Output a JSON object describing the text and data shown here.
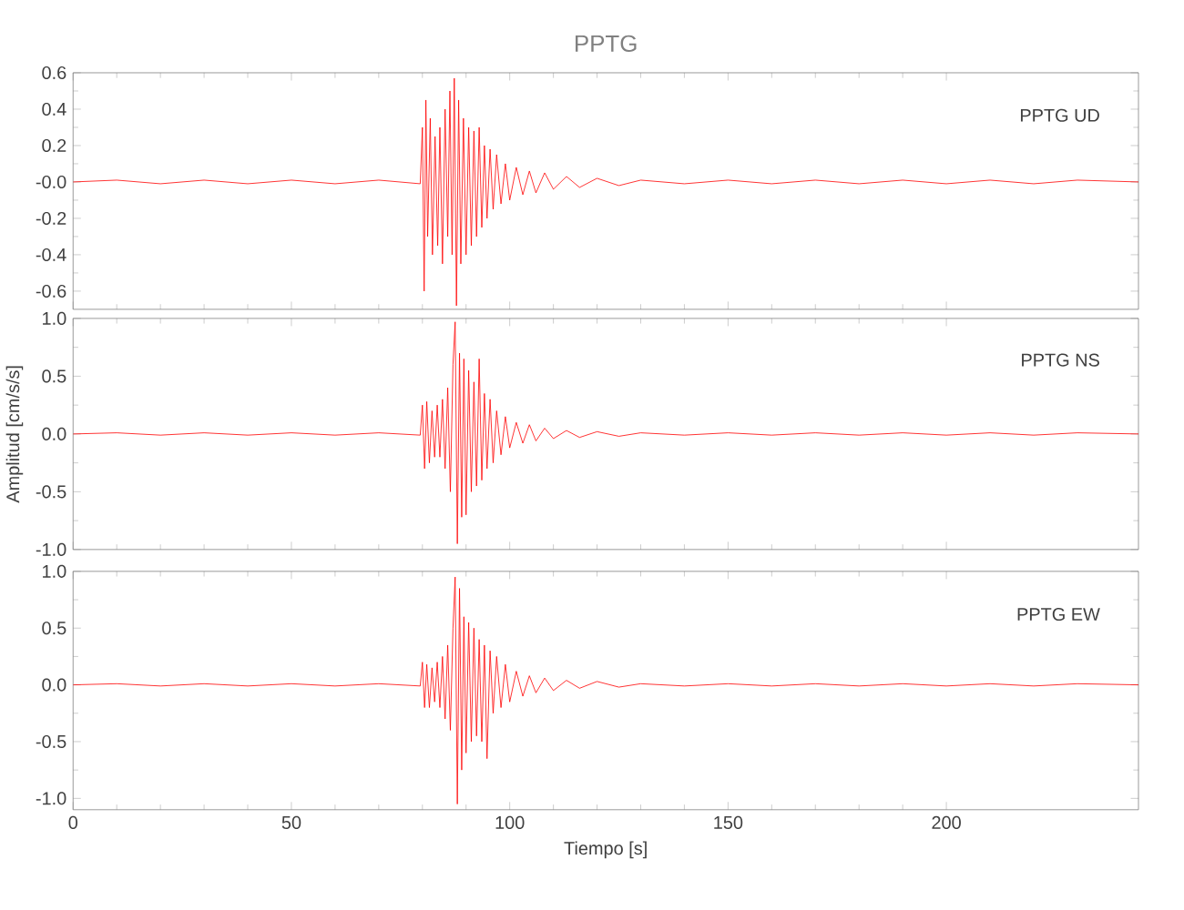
{
  "chart_data": [
    {
      "type": "line",
      "title": "PPTG",
      "annotations": [
        "PPTG   UD"
      ],
      "tick_labels": "y",
      "xlim": [
        0,
        244
      ],
      "xticks": [
        0,
        50,
        100,
        150,
        200
      ],
      "ylim": [
        -0.7,
        0.6
      ],
      "yticks": [
        {
          "value": -0.6,
          "label": "-0.6"
        },
        {
          "value": -0.4,
          "label": "-0.4"
        },
        {
          "value": -0.2,
          "label": "-0.2"
        },
        {
          "value": 0,
          "label": "-0.0"
        },
        0.2,
        0.4,
        0.6
      ],
      "series": [
        {
          "color": "#ff0000",
          "x": [
            0,
            10,
            20,
            30,
            40,
            50,
            60,
            70,
            79.5,
            80,
            80.4,
            80.8,
            81.2,
            81.8,
            82.3,
            82.9,
            83.5,
            84,
            84.6,
            85.2,
            85.8,
            86.3,
            86.8,
            87.3,
            87.8,
            88.3,
            88.8,
            89.4,
            90,
            90.6,
            91.2,
            91.8,
            92.4,
            93,
            93.6,
            94.2,
            94.8,
            95.5,
            96.2,
            97,
            98,
            99,
            100,
            101.5,
            103,
            104.5,
            106,
            108,
            110,
            113,
            116,
            120,
            125,
            130,
            140,
            150,
            160,
            170,
            180,
            190,
            200,
            210,
            220,
            230,
            244
          ],
          "values": [
            0,
            0.01,
            -0.01,
            0.01,
            -0.01,
            0.01,
            -0.01,
            0.01,
            -0.01,
            0.3,
            -0.6,
            0.45,
            -0.3,
            0.35,
            -0.4,
            0.25,
            -0.35,
            0.3,
            -0.45,
            0.4,
            -0.3,
            0.5,
            -0.4,
            0.57,
            -0.68,
            0.45,
            -0.45,
            0.35,
            -0.4,
            0.3,
            -0.35,
            0.28,
            -0.3,
            0.3,
            -0.25,
            0.2,
            -0.2,
            0.18,
            -0.15,
            0.15,
            -0.12,
            0.1,
            -0.1,
            0.08,
            -0.07,
            0.06,
            -0.06,
            0.05,
            -0.04,
            0.03,
            -0.03,
            0.02,
            -0.02,
            0.01,
            -0.01,
            0.01,
            -0.01,
            0.01,
            -0.01,
            0.01,
            -0.01,
            0.01,
            -0.01,
            0.01,
            0
          ]
        }
      ]
    },
    {
      "type": "line",
      "ylabel": "Amplitud [cm/s/s]",
      "annotations": [
        "PPTG   NS"
      ],
      "tick_labels": "y",
      "xlim": [
        0,
        244
      ],
      "xticks": [
        0,
        50,
        100,
        150,
        200
      ],
      "ylim": [
        -1.0,
        1.0
      ],
      "yticks": [
        {
          "value": -1.0,
          "label": "-1.0"
        },
        {
          "value": -0.5,
          "label": "-0.5"
        },
        {
          "value": 0,
          "label": "0.0"
        },
        {
          "value": 0.5,
          "label": "0.5"
        },
        {
          "value": 1.0,
          "label": "1.0"
        }
      ],
      "series": [
        {
          "color": "#ff0000",
          "x": [
            0,
            10,
            20,
            30,
            40,
            50,
            60,
            70,
            79.5,
            80,
            80.5,
            81,
            81.6,
            82.2,
            82.8,
            83.4,
            84,
            84.6,
            85.2,
            85.8,
            86.4,
            87,
            87.5,
            88,
            88.5,
            89,
            89.5,
            90,
            90.6,
            91.2,
            91.8,
            92.4,
            93,
            93.6,
            94.2,
            94.8,
            95.5,
            96.2,
            97,
            98,
            99,
            100,
            101.5,
            103,
            104.5,
            106,
            108,
            110,
            113,
            116,
            120,
            125,
            130,
            140,
            150,
            160,
            170,
            180,
            190,
            200,
            210,
            220,
            230,
            244
          ],
          "values": [
            0,
            0.01,
            -0.01,
            0.01,
            -0.01,
            0.01,
            -0.01,
            0.01,
            -0.01,
            0.25,
            -0.3,
            0.28,
            -0.25,
            0.2,
            -0.2,
            0.25,
            -0.2,
            0.3,
            -0.3,
            0.4,
            -0.5,
            0.6,
            0.97,
            -0.95,
            0.7,
            -0.72,
            0.65,
            -0.7,
            0.55,
            -0.5,
            0.45,
            -0.45,
            0.65,
            -0.4,
            0.35,
            -0.3,
            0.3,
            -0.25,
            0.2,
            -0.18,
            0.15,
            -0.12,
            0.1,
            -0.08,
            0.08,
            -0.06,
            0.05,
            -0.04,
            0.03,
            -0.03,
            0.02,
            -0.02,
            0.01,
            -0.01,
            0.01,
            -0.01,
            0.01,
            -0.01,
            0.01,
            -0.01,
            0.01,
            -0.01,
            0.01,
            0
          ]
        }
      ]
    },
    {
      "type": "line",
      "xlabel": "Tiempo [s]",
      "annotations": [
        "PPTG   EW"
      ],
      "xlim": [
        0,
        244
      ],
      "xticks": [
        0,
        50,
        100,
        150,
        200
      ],
      "ylim": [
        -1.1,
        1.0
      ],
      "yticks": [
        {
          "value": -1.0,
          "label": "-1.0"
        },
        {
          "value": -0.5,
          "label": "-0.5"
        },
        {
          "value": 0,
          "label": "0.0"
        },
        {
          "value": 0.5,
          "label": "0.5"
        },
        {
          "value": 1.0,
          "label": "1.0"
        }
      ],
      "series": [
        {
          "color": "#ff0000",
          "x": [
            0,
            10,
            20,
            30,
            40,
            50,
            60,
            70,
            79.5,
            80,
            80.5,
            81,
            81.6,
            82.2,
            82.8,
            83.4,
            84,
            84.6,
            85.2,
            85.8,
            86.4,
            87,
            87.5,
            88,
            88.5,
            89,
            89.5,
            90,
            90.6,
            91.2,
            91.8,
            92.4,
            93,
            93.6,
            94.2,
            94.8,
            95.5,
            96.2,
            97,
            98,
            99,
            100,
            101.5,
            103,
            104.5,
            106,
            108,
            110,
            113,
            116,
            120,
            125,
            130,
            140,
            150,
            160,
            170,
            180,
            190,
            200,
            210,
            220,
            230,
            244
          ],
          "values": [
            0,
            0.01,
            -0.01,
            0.01,
            -0.01,
            0.01,
            -0.01,
            0.01,
            -0.01,
            0.2,
            -0.2,
            0.18,
            -0.2,
            0.15,
            -0.15,
            0.2,
            -0.2,
            0.25,
            -0.3,
            0.35,
            -0.4,
            0.5,
            0.95,
            -1.05,
            0.85,
            -0.75,
            0.6,
            -0.6,
            0.55,
            -0.5,
            0.5,
            -0.45,
            0.4,
            -0.5,
            0.35,
            -0.65,
            0.3,
            -0.25,
            0.25,
            -0.2,
            0.18,
            -0.15,
            0.12,
            -0.1,
            0.08,
            -0.07,
            0.06,
            -0.05,
            0.04,
            -0.03,
            0.03,
            -0.02,
            0.01,
            -0.01,
            0.01,
            -0.01,
            0.01,
            -0.01,
            0.01,
            -0.01,
            0.01,
            -0.01,
            0.01,
            0
          ]
        }
      ]
    }
  ]
}
